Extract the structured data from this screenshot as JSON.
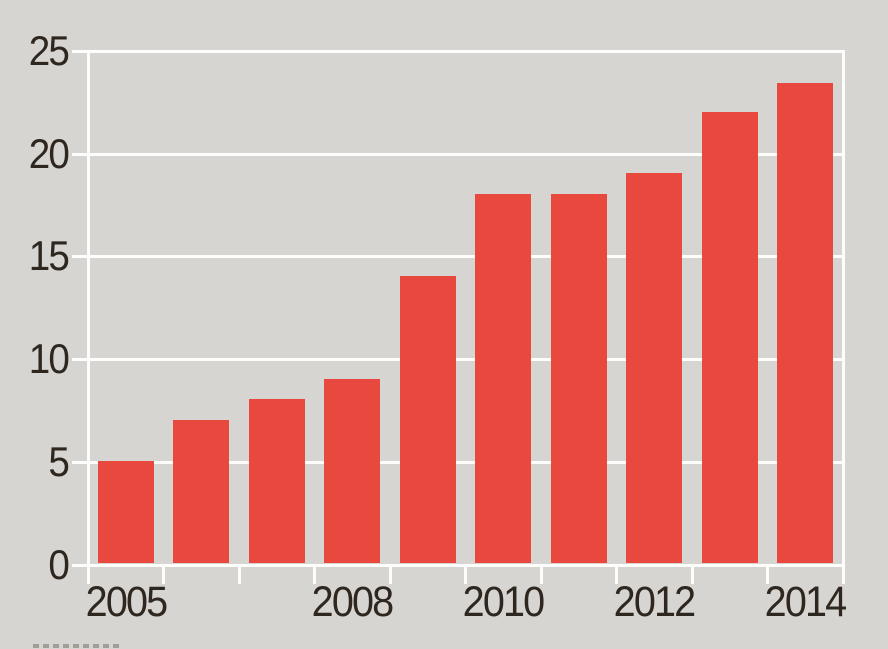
{
  "chart_data": {
    "type": "bar",
    "title": "",
    "xlabel": "",
    "ylabel": "",
    "categories": [
      "2005",
      "2006",
      "2007",
      "2008",
      "2009",
      "2010",
      "2011",
      "2012",
      "2013",
      "2014"
    ],
    "values": [
      5,
      7,
      8,
      9,
      14,
      18,
      18,
      19,
      22,
      23.4
    ],
    "ylim": [
      0,
      25
    ],
    "y_ticks": [
      0,
      5,
      10,
      15,
      20,
      25
    ],
    "x_labeled_categories": [
      "2005",
      "2008",
      "2010",
      "2012",
      "2014"
    ],
    "grid": "horizontal",
    "legend_position": "none",
    "colors": {
      "bar": "#e9483e",
      "background": "#d7d5d2",
      "gridline": "#fdfdfb",
      "tick_label": "#2e271f"
    }
  }
}
